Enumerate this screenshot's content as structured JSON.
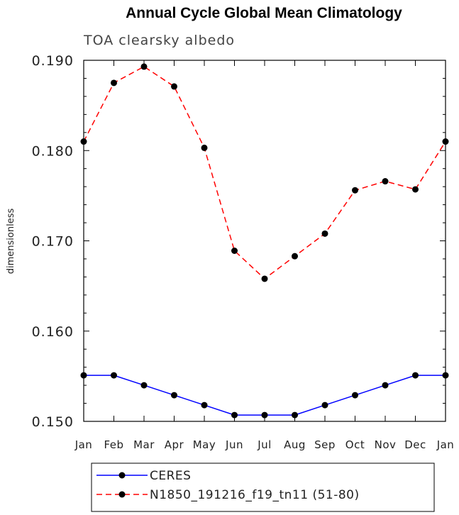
{
  "chart_data": {
    "type": "line",
    "title": "Annual Cycle Global Mean Climatology",
    "subtitle": "TOA clearsky albedo",
    "ylabel": "dimensionless",
    "xlabel": "",
    "categories": [
      "Jan",
      "Feb",
      "Mar",
      "Apr",
      "May",
      "Jun",
      "Jul",
      "Aug",
      "Sep",
      "Oct",
      "Nov",
      "Dec",
      "Jan"
    ],
    "ylim": [
      0.15,
      0.19
    ],
    "yticks": [
      "0.150",
      "0.160",
      "0.170",
      "0.180",
      "0.190"
    ],
    "grid": false,
    "legend_position": "bottom",
    "series": [
      {
        "name": "CERES",
        "color": "#0000ff",
        "dash": "solid",
        "values": [
          0.1551,
          0.1551,
          0.154,
          0.1529,
          0.1518,
          0.1507,
          0.1507,
          0.1507,
          0.1518,
          0.1529,
          0.154,
          0.1551,
          0.1551
        ]
      },
      {
        "name": "N1850_191216_f19_tn11 (51-80)",
        "color": "#ff0000",
        "dash": "dashed",
        "values": [
          0.181,
          0.1875,
          0.1893,
          0.1871,
          0.1803,
          0.1689,
          0.1658,
          0.1683,
          0.1708,
          0.1756,
          0.1766,
          0.1757,
          0.181
        ]
      }
    ]
  }
}
